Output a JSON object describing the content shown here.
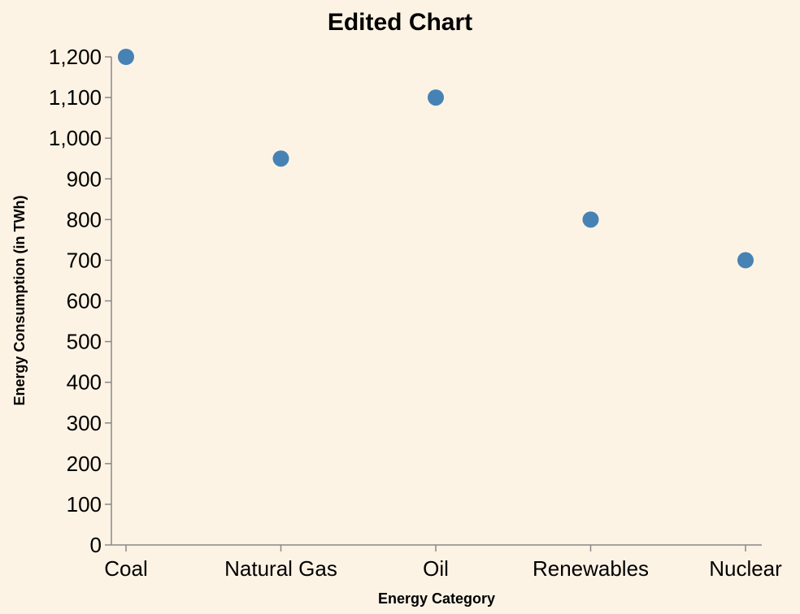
{
  "chart_data": {
    "type": "scatter",
    "title": "Edited Chart",
    "xlabel": "Energy Category",
    "ylabel": "Energy Consumption (in TWh)",
    "categories": [
      "Coal",
      "Natural Gas",
      "Oil",
      "Renewables",
      "Nuclear"
    ],
    "values": [
      1200,
      950,
      1100,
      800,
      700
    ],
    "ylim": [
      0,
      1200
    ],
    "yticks": [
      0,
      100,
      200,
      300,
      400,
      500,
      600,
      700,
      800,
      900,
      1000,
      1100,
      1200
    ],
    "ytick_labels": [
      "0",
      "100",
      "200",
      "300",
      "400",
      "500",
      "600",
      "700",
      "800",
      "900",
      "1,000",
      "1,100",
      "1,200"
    ],
    "grid": false,
    "point_color": "#4682B4",
    "background_color": "#FDF3E5"
  }
}
